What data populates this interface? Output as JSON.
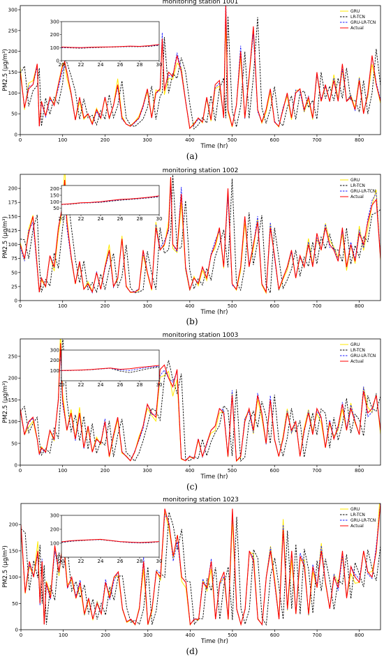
{
  "chart_data": [
    {
      "type": "line",
      "title": "monitoring station 1001",
      "xlabel": "Time (hr)",
      "ylabel": "PM2.5 (μg/m³)",
      "panel_label": "(a)",
      "xlim": [
        0,
        850
      ],
      "ylim": [
        0,
        310
      ],
      "xticks": [
        0,
        100,
        200,
        300,
        400,
        500,
        600,
        700,
        800
      ],
      "yticks": [
        0,
        50,
        100,
        150,
        200,
        250,
        300
      ],
      "legend": [
        "GRU",
        "LR-TCN",
        "GRU-LR-TCN",
        "Actual"
      ],
      "legend_position": "top-right",
      "series_colors": [
        "#ffea00",
        "#000000",
        "#1a1aff",
        "#ff0000"
      ],
      "x": [
        0,
        10,
        20,
        30,
        40,
        45,
        50,
        60,
        70,
        80,
        90,
        100,
        105,
        110,
        120,
        130,
        140,
        150,
        160,
        170,
        180,
        190,
        200,
        210,
        220,
        230,
        240,
        250,
        260,
        270,
        280,
        290,
        300,
        310,
        320,
        330,
        335,
        340,
        350,
        360,
        370,
        380,
        390,
        400,
        410,
        420,
        430,
        440,
        450,
        460,
        470,
        480,
        485,
        490,
        500,
        510,
        520,
        530,
        540,
        550,
        560,
        570,
        580,
        590,
        600,
        610,
        620,
        630,
        640,
        650,
        660,
        670,
        680,
        690,
        700,
        710,
        720,
        730,
        740,
        750,
        760,
        770,
        780,
        790,
        800,
        810,
        820,
        830,
        840,
        850
      ],
      "actual": [
        150,
        65,
        110,
        120,
        170,
        20,
        80,
        45,
        90,
        70,
        120,
        165,
        175,
        150,
        100,
        35,
        90,
        40,
        50,
        25,
        60,
        40,
        90,
        40,
        70,
        120,
        40,
        25,
        20,
        30,
        40,
        70,
        110,
        40,
        100,
        110,
        230,
        105,
        150,
        140,
        190,
        150,
        80,
        15,
        25,
        40,
        30,
        90,
        35,
        120,
        130,
        40,
        310,
        60,
        20,
        70,
        200,
        40,
        140,
        260,
        60,
        30,
        60,
        110,
        30,
        20,
        60,
        100,
        40,
        100,
        110,
        60,
        90,
        40,
        150,
        80,
        120,
        80,
        130,
        80,
        170,
        80,
        90,
        60,
        130,
        50,
        100,
        190,
        120,
        80
      ],
      "inset": {
        "xlim": [
          20,
          30
        ],
        "ylim": [
          0,
          300
        ],
        "xticks": [
          20,
          22,
          24,
          26,
          28,
          30
        ],
        "yticks": [
          0,
          100,
          200,
          300
        ],
        "x": [
          20,
          21,
          22,
          23,
          24,
          25,
          26,
          27,
          28,
          29,
          30
        ],
        "actual": [
          105,
          102,
          100,
          103,
          105,
          106,
          108,
          112,
          110,
          115,
          125
        ],
        "lrtcn": [
          100,
          98,
          96,
          99,
          102,
          104,
          106,
          108,
          107,
          110,
          118
        ],
        "grulrtcn": [
          102,
          100,
          98,
          101,
          104,
          105,
          107,
          110,
          109,
          113,
          121
        ]
      }
    },
    {
      "type": "line",
      "title": "monitoring station 1002",
      "xlabel": "Time (hr)",
      "ylabel": "PM2.5 (μg/m³)",
      "panel_label": "(b)",
      "xlim": [
        0,
        850
      ],
      "ylim": [
        0,
        225
      ],
      "xticks": [
        0,
        100,
        200,
        300,
        400,
        500,
        600,
        700,
        800
      ],
      "yticks": [
        0,
        25,
        50,
        75,
        100,
        125,
        150,
        175,
        200
      ],
      "legend": [
        "GRU",
        "LR-TCN",
        "GRU-LR-TCN",
        "Actual"
      ],
      "legend_position": "top-right",
      "series_colors": [
        "#ffea00",
        "#000000",
        "#1a1aff",
        "#ff0000"
      ],
      "x": [
        0,
        10,
        20,
        30,
        40,
        45,
        50,
        60,
        70,
        80,
        90,
        100,
        105,
        110,
        120,
        130,
        140,
        150,
        160,
        170,
        180,
        190,
        200,
        210,
        220,
        230,
        240,
        250,
        260,
        270,
        280,
        290,
        300,
        310,
        320,
        330,
        340,
        350,
        355,
        360,
        370,
        380,
        390,
        400,
        410,
        420,
        430,
        440,
        450,
        460,
        470,
        480,
        490,
        500,
        510,
        520,
        530,
        540,
        550,
        560,
        570,
        580,
        590,
        600,
        610,
        620,
        630,
        640,
        650,
        660,
        670,
        680,
        690,
        700,
        710,
        720,
        730,
        740,
        750,
        760,
        770,
        780,
        790,
        800,
        810,
        820,
        830,
        840,
        850
      ],
      "actual": [
        100,
        75,
        120,
        150,
        60,
        15,
        40,
        25,
        80,
        60,
        130,
        170,
        215,
        140,
        80,
        30,
        70,
        20,
        30,
        15,
        50,
        20,
        60,
        90,
        25,
        40,
        110,
        25,
        15,
        15,
        20,
        90,
        50,
        20,
        130,
        90,
        100,
        130,
        220,
        100,
        90,
        190,
        60,
        20,
        40,
        30,
        60,
        40,
        80,
        100,
        130,
        60,
        200,
        30,
        20,
        60,
        150,
        60,
        100,
        140,
        30,
        15,
        130,
        80,
        20,
        40,
        60,
        90,
        40,
        80,
        60,
        100,
        60,
        120,
        90,
        130,
        100,
        90,
        70,
        130,
        60,
        100,
        70,
        120,
        100,
        140,
        170,
        180,
        75
      ],
      "inset": {
        "xlim": [
          20,
          30
        ],
        "ylim": [
          0,
          225
        ],
        "xticks": [
          20,
          22,
          24,
          26,
          28,
          30
        ],
        "yticks": [
          50,
          100,
          150,
          200
        ],
        "x": [
          20,
          21,
          22,
          23,
          24,
          25,
          26,
          27,
          28,
          29,
          30
        ],
        "actual": [
          80,
          85,
          92,
          95,
          100,
          110,
          118,
          122,
          128,
          135,
          145
        ],
        "lrtcn": [
          78,
          82,
          90,
          92,
          96,
          104,
          112,
          118,
          124,
          130,
          138
        ],
        "grulrtcn": [
          79,
          84,
          91,
          93,
          98,
          107,
          115,
          120,
          126,
          133,
          142
        ]
      }
    },
    {
      "type": "line",
      "title": "monitoring station 1003",
      "xlabel": "Time (hr)",
      "ylabel": "PM2.5 (μg/m³)",
      "panel_label": "(c)",
      "xlim": [
        0,
        850
      ],
      "ylim": [
        0,
        290
      ],
      "xticks": [
        0,
        100,
        200,
        300,
        400,
        500,
        600,
        700,
        800
      ],
      "yticks": [
        0,
        50,
        100,
        150,
        200,
        250
      ],
      "legend": [
        "GRU",
        "LR-TCN",
        "GRU-LR-TCN",
        "Actual"
      ],
      "legend_position": "top-right",
      "series_colors": [
        "#ffea00",
        "#000000",
        "#1a1aff",
        "#ff0000"
      ],
      "x": [
        0,
        10,
        20,
        30,
        40,
        45,
        50,
        60,
        70,
        80,
        90,
        95,
        100,
        110,
        120,
        130,
        140,
        150,
        160,
        170,
        180,
        190,
        200,
        210,
        220,
        230,
        240,
        250,
        260,
        270,
        280,
        290,
        300,
        310,
        320,
        330,
        340,
        350,
        360,
        370,
        380,
        390,
        400,
        410,
        420,
        430,
        440,
        450,
        460,
        470,
        480,
        490,
        500,
        510,
        520,
        530,
        540,
        550,
        560,
        570,
        580,
        590,
        600,
        610,
        620,
        630,
        640,
        650,
        660,
        670,
        680,
        690,
        700,
        710,
        720,
        730,
        740,
        750,
        760,
        770,
        780,
        790,
        800,
        810,
        820,
        830,
        840,
        850
      ],
      "actual": [
        130,
        70,
        100,
        110,
        60,
        25,
        40,
        30,
        80,
        60,
        150,
        280,
        150,
        80,
        120,
        60,
        120,
        40,
        90,
        30,
        60,
        50,
        100,
        20,
        70,
        110,
        30,
        20,
        10,
        30,
        60,
        90,
        140,
        120,
        110,
        220,
        230,
        200,
        180,
        220,
        15,
        10,
        20,
        15,
        60,
        20,
        50,
        80,
        90,
        130,
        120,
        20,
        160,
        10,
        20,
        100,
        130,
        80,
        160,
        120,
        50,
        150,
        60,
        20,
        60,
        120,
        80,
        100,
        20,
        80,
        120,
        70,
        130,
        110,
        40,
        100,
        60,
        90,
        140,
        80,
        130,
        100,
        70,
        170,
        120,
        130,
        160,
        80
      ],
      "inset": {
        "xlim": [
          20,
          30
        ],
        "ylim": [
          0,
          300
        ],
        "xticks": [
          20,
          22,
          24,
          26,
          28,
          30
        ],
        "yticks": [
          100,
          200,
          300
        ],
        "x": [
          20,
          21,
          22,
          23,
          24,
          25,
          26,
          27,
          28,
          29,
          30
        ],
        "actual": [
          100,
          102,
          105,
          110,
          118,
          125,
          112,
          118,
          130,
          140,
          150
        ],
        "lrtcn": [
          98,
          100,
          103,
          108,
          115,
          122,
          95,
          80,
          100,
          120,
          135
        ],
        "grulrtcn": [
          99,
          101,
          104,
          109,
          116,
          123,
          105,
          100,
          118,
          132,
          142
        ]
      }
    },
    {
      "type": "line",
      "title": "monitoring station 1023",
      "xlabel": "Time (hr)",
      "ylabel": "PM2.5 (μg/m³)",
      "panel_label": "(d)",
      "xlim": [
        0,
        850
      ],
      "ylim": [
        0,
        240
      ],
      "xticks": [
        0,
        100,
        200,
        300,
        400,
        500,
        600,
        700,
        800
      ],
      "yticks": [
        0,
        50,
        100,
        150,
        200
      ],
      "legend": [
        "GRU",
        "LR-TCN",
        "GRU-LR-TCN",
        "Actual"
      ],
      "legend_position": "top-right",
      "series_colors": [
        "#ffea00",
        "#000000",
        "#1a1aff",
        "#ff0000"
      ],
      "x": [
        0,
        10,
        20,
        30,
        40,
        45,
        50,
        55,
        60,
        70,
        80,
        90,
        100,
        110,
        120,
        130,
        140,
        150,
        160,
        170,
        180,
        190,
        200,
        210,
        220,
        230,
        240,
        250,
        260,
        270,
        280,
        290,
        300,
        310,
        320,
        330,
        340,
        350,
        360,
        370,
        380,
        390,
        400,
        410,
        420,
        430,
        440,
        450,
        460,
        470,
        480,
        490,
        500,
        510,
        520,
        530,
        540,
        550,
        560,
        570,
        580,
        590,
        600,
        610,
        620,
        630,
        640,
        650,
        660,
        670,
        680,
        690,
        700,
        710,
        720,
        730,
        740,
        750,
        760,
        770,
        780,
        790,
        800,
        810,
        820,
        830,
        840,
        850
      ],
      "actual": [
        200,
        70,
        130,
        100,
        150,
        50,
        130,
        10,
        90,
        60,
        160,
        110,
        170,
        80,
        100,
        60,
        90,
        30,
        60,
        20,
        50,
        30,
        90,
        60,
        100,
        110,
        40,
        15,
        20,
        10,
        40,
        130,
        10,
        40,
        110,
        100,
        230,
        200,
        140,
        180,
        100,
        90,
        10,
        20,
        20,
        90,
        80,
        130,
        20,
        90,
        110,
        20,
        230,
        40,
        10,
        40,
        150,
        130,
        20,
        10,
        100,
        150,
        90,
        20,
        190,
        40,
        150,
        30,
        140,
        120,
        30,
        120,
        80,
        150,
        90,
        40,
        100,
        80,
        150,
        60,
        120,
        100,
        90,
        150,
        110,
        100,
        150,
        240
      ],
      "inset": {
        "xlim": [
          20,
          30
        ],
        "ylim": [
          0,
          300
        ],
        "xticks": [
          20,
          22,
          24,
          26,
          28,
          30
        ],
        "yticks": [
          0,
          100,
          200,
          300
        ],
        "x": [
          20,
          21,
          22,
          23,
          24,
          25,
          26,
          27,
          28,
          29,
          30
        ],
        "actual": [
          110,
          118,
          122,
          125,
          128,
          120,
          112,
          108,
          105,
          108,
          112
        ],
        "lrtcn": [
          105,
          114,
          119,
          123,
          126,
          118,
          110,
          105,
          102,
          104,
          110
        ],
        "grulrtcn": [
          108,
          116,
          121,
          124,
          127,
          119,
          111,
          106,
          103,
          106,
          111
        ]
      }
    }
  ]
}
